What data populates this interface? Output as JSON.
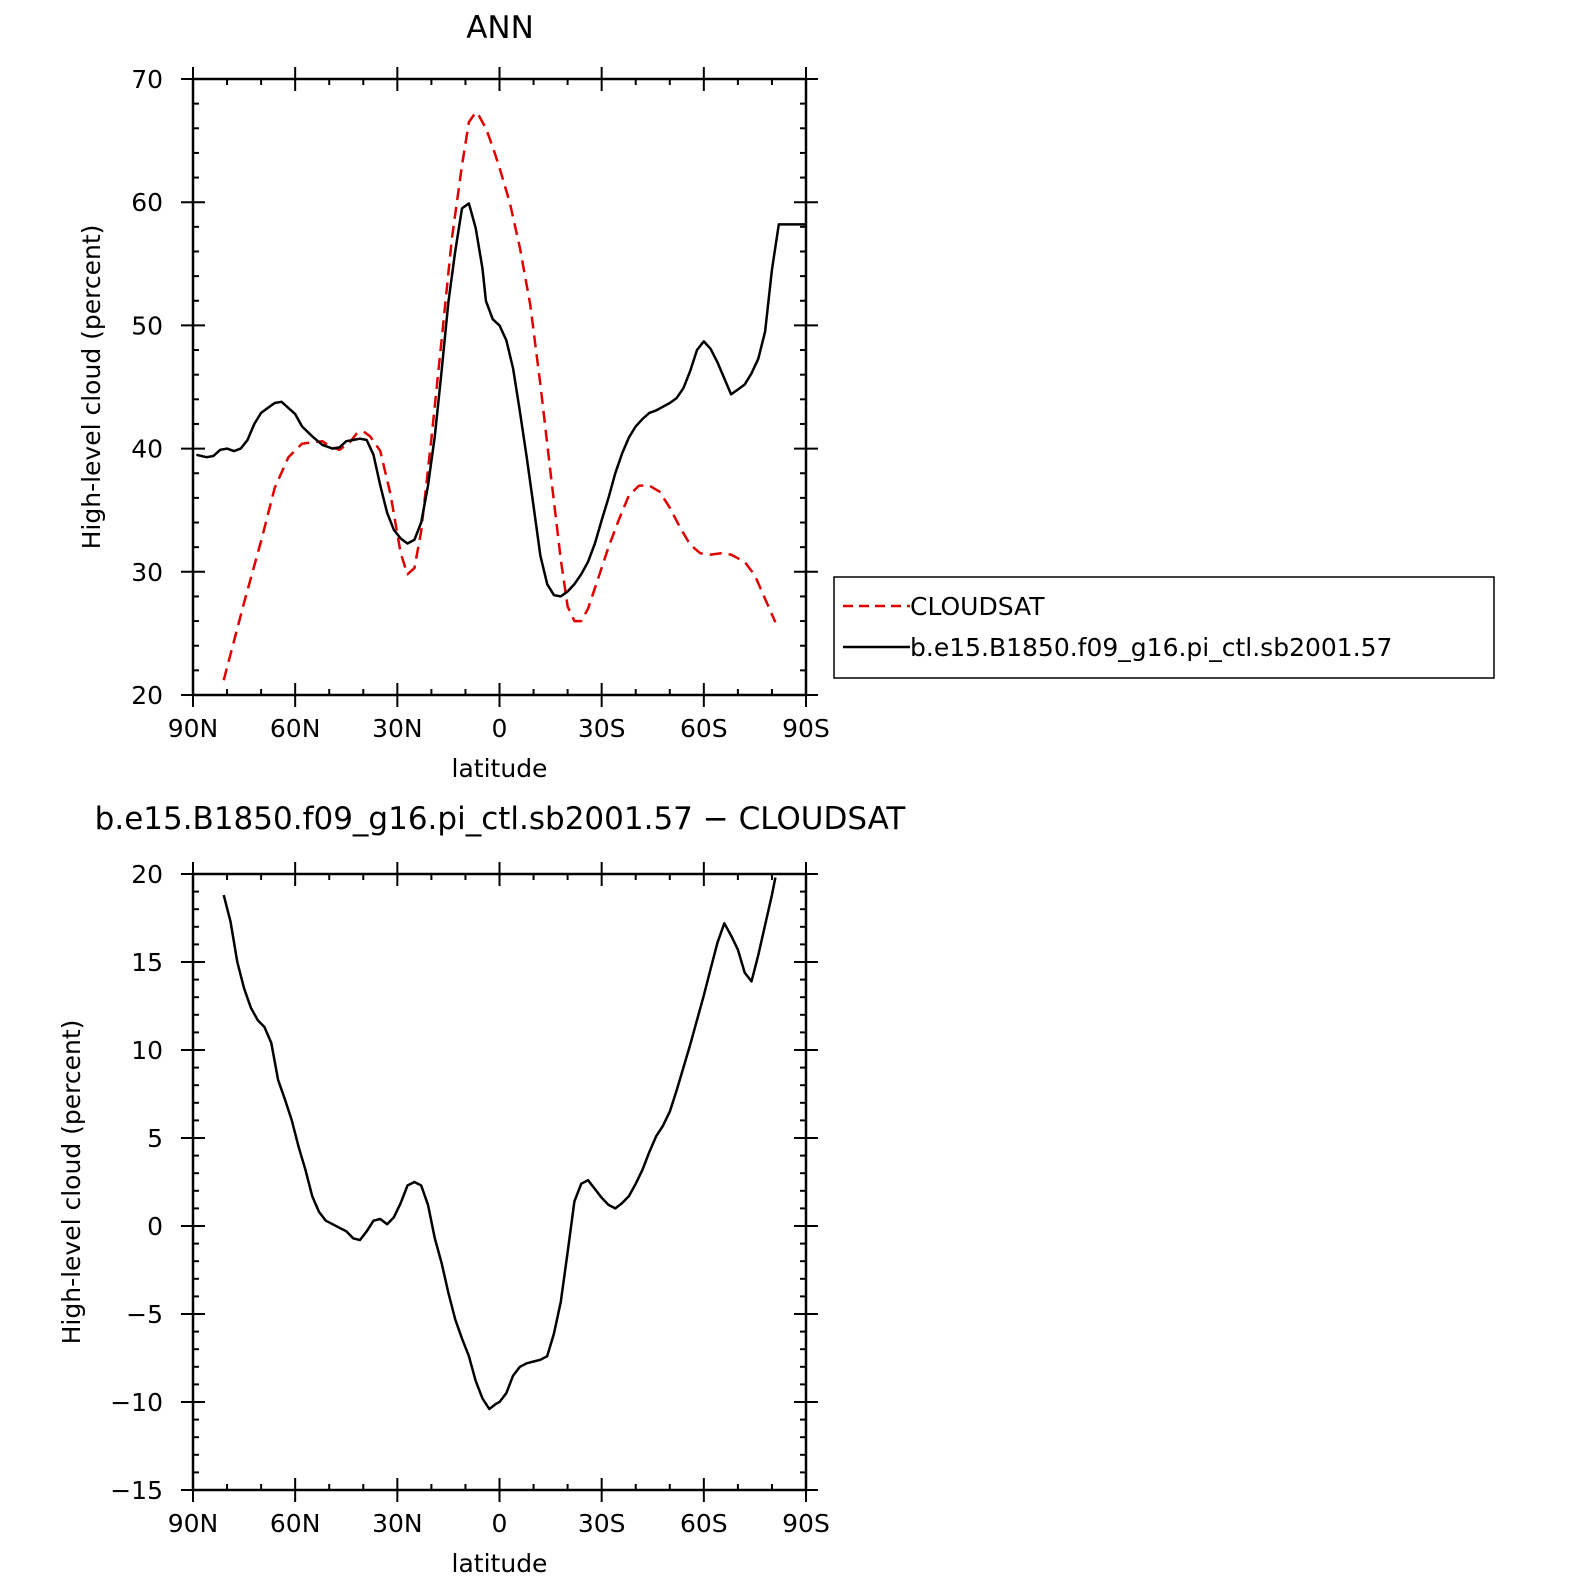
{
  "chart_data": [
    {
      "type": "line",
      "title": "ANN",
      "xlabel": "latitude",
      "ylabel": "High-level cloud (percent)",
      "xlim": [
        90,
        -90
      ],
      "ylim": [
        20,
        70
      ],
      "xtick_values": [
        90,
        60,
        30,
        0,
        -30,
        -60,
        -90
      ],
      "xtick_labels": [
        "90N",
        "60N",
        "30N",
        "0",
        "30S",
        "60S",
        "90S"
      ],
      "ytick_values": [
        20,
        30,
        40,
        50,
        60,
        70
      ],
      "ytick_labels": [
        "20",
        "30",
        "40",
        "50",
        "60",
        "70"
      ],
      "legend_position": "right",
      "series": [
        {
          "name": "CLOUDSAT",
          "color": "#e00000",
          "dash": "dashed",
          "x": [
            81,
            75,
            70,
            66,
            62,
            58,
            55,
            52,
            50,
            47,
            44,
            42,
            40,
            38,
            35,
            32,
            29,
            27,
            25,
            23,
            20,
            17,
            14,
            11,
            9,
            7,
            6,
            4,
            2,
            0,
            -3,
            -6,
            -9,
            -12,
            -15,
            -18,
            -20,
            -22,
            -24,
            -26,
            -29,
            -32,
            -35,
            -38,
            -41,
            -44,
            -47,
            -50,
            -53,
            -56,
            -59,
            -62,
            -65,
            -68,
            -72,
            -75,
            -78,
            -81
          ],
          "y": [
            21.2,
            27.5,
            32.5,
            36.8,
            39.3,
            40.4,
            40.5,
            40.6,
            40.2,
            39.9,
            40.5,
            41.2,
            41.4,
            41.0,
            39.8,
            36.3,
            31.5,
            29.8,
            30.3,
            33.3,
            40.8,
            48.8,
            57.0,
            63.0,
            66.5,
            67.3,
            67.0,
            66.0,
            64.5,
            62.8,
            60.0,
            56.3,
            51.7,
            45.2,
            38.0,
            31.0,
            27.2,
            26.0,
            26.0,
            27.0,
            29.5,
            32.0,
            34.2,
            36.2,
            37.0,
            37.0,
            36.5,
            35.2,
            33.6,
            32.2,
            31.5,
            31.4,
            31.5,
            31.4,
            30.8,
            29.7,
            27.8,
            25.9
          ]
        },
        {
          "name": "b.e15.B1850.f09_g16.pi_ctl.sb2001.57",
          "color": "#000000",
          "dash": "solid",
          "x": [
            89,
            86,
            84,
            82,
            80,
            78,
            76,
            74,
            72,
            70,
            68,
            66,
            64,
            62,
            60,
            58,
            55,
            52,
            49,
            47,
            45,
            43,
            41,
            39,
            37,
            35,
            33,
            31,
            29,
            27,
            25,
            23,
            21,
            19,
            17,
            15,
            13,
            11,
            9,
            7,
            5,
            4,
            2,
            0,
            -2,
            -4,
            -6,
            -8,
            -10,
            -12,
            -14,
            -16,
            -18,
            -20,
            -22,
            -24,
            -26,
            -28,
            -30,
            -32,
            -34,
            -36,
            -38,
            -40,
            -42,
            -44,
            -46,
            -48,
            -50,
            -52,
            -54,
            -56,
            -58,
            -60,
            -62,
            -64,
            -66,
            -68,
            -70,
            -72,
            -74,
            -76,
            -78,
            -80,
            -82,
            -84,
            -86,
            -88,
            -90
          ],
          "y": [
            39.5,
            39.3,
            39.4,
            39.9,
            40.0,
            39.8,
            40.0,
            40.7,
            42.0,
            42.9,
            43.3,
            43.7,
            43.8,
            43.3,
            42.8,
            41.8,
            41.0,
            40.3,
            40.0,
            40.1,
            40.6,
            40.7,
            40.8,
            40.7,
            39.5,
            37.0,
            34.8,
            33.4,
            32.7,
            32.3,
            32.6,
            34.0,
            37.0,
            41.0,
            46.3,
            51.9,
            56.0,
            59.5,
            59.9,
            57.9,
            54.6,
            52.0,
            50.5,
            50.0,
            48.8,
            46.5,
            43.0,
            39.3,
            35.3,
            31.3,
            29.0,
            28.1,
            28.0,
            28.4,
            29.0,
            29.8,
            30.8,
            32.3,
            34.2,
            36.0,
            38.0,
            39.6,
            40.9,
            41.8,
            42.4,
            42.9,
            43.1,
            43.4,
            43.7,
            44.1,
            44.9,
            46.3,
            48.0,
            48.7,
            48.1,
            47.0,
            45.7,
            44.4,
            44.8,
            45.2,
            46.1,
            47.3,
            49.5,
            54.5,
            58.2,
            58.2,
            58.2,
            58.2,
            58.2
          ]
        }
      ]
    },
    {
      "type": "line",
      "title": "b.e15.B1850.f09_g16.pi_ctl.sb2001.57 − CLOUDSAT",
      "xlabel": "latitude",
      "ylabel": "High-level cloud (percent)",
      "xlim": [
        90,
        -90
      ],
      "ylim": [
        -15,
        20
      ],
      "xtick_values": [
        90,
        60,
        30,
        0,
        -30,
        -60,
        -90
      ],
      "xtick_labels": [
        "90N",
        "60N",
        "30N",
        "0",
        "30S",
        "60S",
        "90S"
      ],
      "ytick_values": [
        -15,
        -10,
        -5,
        0,
        5,
        10,
        15,
        20
      ],
      "ytick_labels": [
        "−15",
        "−10",
        "−5",
        "0",
        "5",
        "10",
        "15",
        "20"
      ],
      "series": [
        {
          "color": "#000000",
          "dash": "solid",
          "x": [
            81,
            79,
            77,
            75,
            73,
            71,
            69,
            67,
            65,
            63,
            61,
            59,
            57,
            55,
            53,
            51,
            49,
            47,
            45,
            43,
            41,
            39,
            37,
            35,
            33,
            31,
            29,
            27,
            25,
            23,
            21,
            19,
            17,
            15,
            13,
            11,
            9,
            7,
            5,
            3,
            1,
            0,
            -2,
            -4,
            -6,
            -8,
            -10,
            -12,
            -14,
            -16,
            -18,
            -20,
            -22,
            -24,
            -26,
            -28,
            -30,
            -32,
            -34,
            -36,
            -38,
            -40,
            -42,
            -44,
            -46,
            -48,
            -50,
            -52,
            -54,
            -56,
            -58,
            -60,
            -62,
            -64,
            -66,
            -68,
            -70,
            -72,
            -74,
            -76,
            -78,
            -80,
            -81
          ],
          "y": [
            18.8,
            17.3,
            15.0,
            13.5,
            12.4,
            11.7,
            11.3,
            10.4,
            8.3,
            7.2,
            6.0,
            4.5,
            3.2,
            1.7,
            0.8,
            0.3,
            0.1,
            -0.1,
            -0.3,
            -0.7,
            -0.8,
            -0.3,
            0.3,
            0.4,
            0.1,
            0.5,
            1.3,
            2.3,
            2.5,
            2.3,
            1.2,
            -0.7,
            -2.1,
            -3.8,
            -5.3,
            -6.4,
            -7.4,
            -8.8,
            -9.8,
            -10.4,
            -10.1,
            -10.0,
            -9.5,
            -8.5,
            -8.0,
            -7.8,
            -7.7,
            -7.6,
            -7.4,
            -6.1,
            -4.3,
            -1.5,
            1.4,
            2.4,
            2.6,
            2.1,
            1.6,
            1.2,
            1.0,
            1.3,
            1.7,
            2.4,
            3.2,
            4.2,
            5.1,
            5.7,
            6.5,
            7.7,
            9.0,
            10.3,
            11.7,
            13.1,
            14.6,
            16.1,
            17.2,
            16.5,
            15.7,
            14.4,
            13.9,
            15.4,
            17.1,
            18.8,
            19.8
          ]
        }
      ]
    }
  ]
}
